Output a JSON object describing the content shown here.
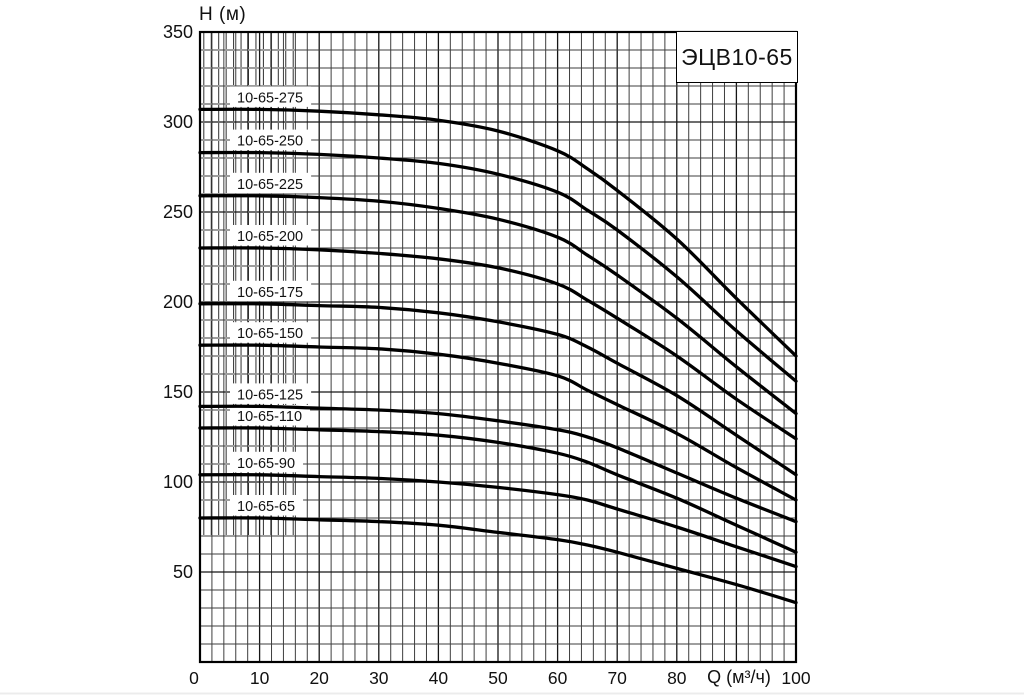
{
  "figure": {
    "title": "ЭЦВ10-65",
    "x_axis_title": "Q (м³/ч)",
    "y_axis_title": "H (м)"
  },
  "chart_data": {
    "type": "line",
    "title": "ЭЦВ10-65",
    "xlabel": "Q (м³/ч)",
    "ylabel": "H (м)",
    "xlim": [
      0,
      100
    ],
    "ylim": [
      0,
      350
    ],
    "x_tick_labels": [
      0,
      10,
      20,
      30,
      40,
      50,
      60,
      70,
      80,
      100
    ],
    "y_tick_labels": [
      50,
      100,
      150,
      200,
      250,
      300,
      350
    ],
    "x_minor_step": 2,
    "x_major_step": 10,
    "y_minor_step": 10,
    "y_major_step": 50,
    "grid": "on",
    "legend_position": "inline-curve-labels",
    "x": [
      0,
      10,
      20,
      30,
      40,
      50,
      60,
      65,
      70,
      80,
      90,
      100
    ],
    "series": [
      {
        "name": "10-65-275",
        "values": [
          307,
          307,
          306,
          304,
          301,
          295,
          284,
          274,
          262,
          235,
          202,
          170
        ]
      },
      {
        "name": "10-65-250",
        "values": [
          283,
          283,
          282,
          280,
          277,
          271,
          261,
          251,
          240,
          214,
          184,
          156
        ]
      },
      {
        "name": "10-65-225",
        "values": [
          259,
          259,
          258,
          256,
          252,
          246,
          236,
          226,
          215,
          191,
          164,
          138
        ]
      },
      {
        "name": "10-65-200",
        "values": [
          230,
          230,
          229,
          227,
          224,
          219,
          210,
          201,
          191,
          170,
          146,
          124
        ]
      },
      {
        "name": "10-65-175",
        "values": [
          199,
          199,
          198,
          197,
          194,
          189,
          182,
          175,
          166,
          148,
          126,
          104
        ]
      },
      {
        "name": "10-65-150",
        "values": [
          176,
          176,
          175,
          174,
          171,
          166,
          159,
          151,
          143,
          127,
          108,
          90
        ]
      },
      {
        "name": "10-65-125",
        "values": [
          142,
          142,
          141,
          140,
          138,
          134,
          129,
          125,
          119,
          105,
          91,
          78
        ]
      },
      {
        "name": "10-65-110",
        "values": [
          130,
          130,
          129,
          128,
          126,
          122,
          116,
          111,
          104,
          91,
          76,
          61
        ]
      },
      {
        "name": "10-65-90",
        "values": [
          104,
          104,
          103,
          102,
          100,
          97,
          93,
          90,
          85,
          75,
          64,
          53
        ]
      },
      {
        "name": "10-65-65",
        "values": [
          80,
          80,
          79,
          78,
          76,
          72,
          68,
          65,
          61,
          52,
          43,
          33
        ]
      }
    ],
    "colors": {
      "curve": "#000000",
      "grid_minor": "#3e3e3e",
      "grid_major": "#161616",
      "border": "#000000",
      "background": "#ffffff",
      "text": "#111111"
    }
  }
}
